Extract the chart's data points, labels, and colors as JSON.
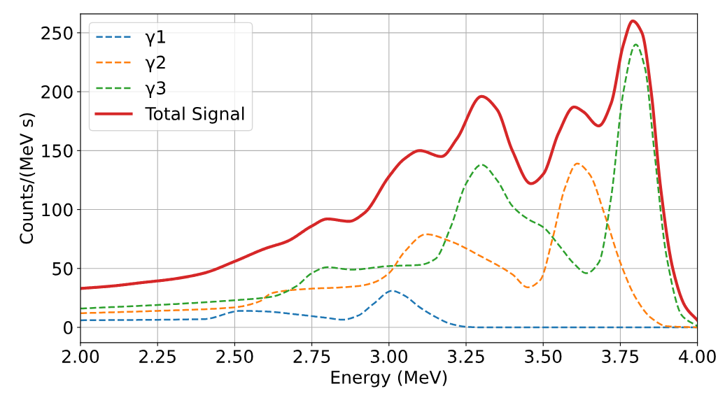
{
  "chart_data": {
    "type": "line",
    "xlabel": "Energy (MeV)",
    "ylabel": "Counts/(MeV s)",
    "xlim": [
      2.0,
      4.0
    ],
    "ylim": [
      -13,
      266
    ],
    "xticks": [
      {
        "value": 2.0,
        "label": "2.00"
      },
      {
        "value": 2.25,
        "label": "2.25"
      },
      {
        "value": 2.5,
        "label": "2.50"
      },
      {
        "value": 2.75,
        "label": "2.75"
      },
      {
        "value": 3.0,
        "label": "3.00"
      },
      {
        "value": 3.25,
        "label": "3.25"
      },
      {
        "value": 3.5,
        "label": "3.50"
      },
      {
        "value": 3.75,
        "label": "3.75"
      },
      {
        "value": 4.0,
        "label": "4.00"
      }
    ],
    "yticks": [
      0,
      50,
      100,
      150,
      200,
      250
    ],
    "grid": true,
    "legend": "top left",
    "series": [
      {
        "name": "γ1",
        "color": "#1f77b4",
        "line_style": "dashed",
        "x": [
          2.0,
          2.4,
          2.52,
          2.6,
          2.7,
          2.8,
          2.85,
          2.9,
          2.95,
          3.01,
          3.05,
          3.1,
          3.15,
          3.2,
          3.25,
          3.3,
          4.0
        ],
        "values": [
          6,
          7,
          14,
          13.5,
          11,
          8,
          6.5,
          10,
          20,
          31,
          27,
          17,
          9,
          3,
          0.5,
          0,
          0
        ]
      },
      {
        "name": "γ2",
        "color": "#ff7f0e",
        "line_style": "dashed",
        "x": [
          2.0,
          2.25,
          2.5,
          2.58,
          2.62,
          2.7,
          2.9,
          2.95,
          3.0,
          3.05,
          3.12,
          3.2,
          3.3,
          3.4,
          3.45,
          3.49,
          3.53,
          3.57,
          3.61,
          3.65,
          3.7,
          3.75,
          3.8,
          3.85,
          3.9,
          4.0
        ],
        "values": [
          12,
          14,
          17,
          22,
          29,
          32,
          35,
          38,
          46,
          64,
          79,
          73,
          60,
          45,
          34,
          40,
          75,
          118,
          139,
          130,
          95,
          55,
          25,
          8,
          1,
          0
        ]
      },
      {
        "name": "γ3",
        "color": "#2ca02c",
        "line_style": "dashed",
        "x": [
          2.0,
          2.25,
          2.5,
          2.62,
          2.7,
          2.75,
          2.8,
          2.88,
          3.0,
          3.1,
          3.15,
          3.2,
          3.25,
          3.3,
          3.35,
          3.4,
          3.45,
          3.5,
          3.55,
          3.6,
          3.64,
          3.68,
          3.72,
          3.76,
          3.8,
          3.83,
          3.86,
          3.9,
          3.95,
          4.0
        ],
        "values": [
          16,
          19,
          23,
          26,
          35,
          46,
          51,
          49,
          52,
          53,
          58,
          85,
          122,
          138,
          125,
          103,
          92,
          85,
          70,
          54,
          46,
          55,
          110,
          200,
          240,
          220,
          150,
          60,
          10,
          1
        ]
      },
      {
        "name": "Total Signal",
        "color": "#d62728",
        "line_style": "solid",
        "x": [
          2.0,
          2.1,
          2.2,
          2.3,
          2.4,
          2.5,
          2.6,
          2.67,
          2.75,
          2.8,
          2.87,
          2.92,
          3.0,
          3.05,
          3.1,
          3.17,
          3.22,
          3.3,
          3.35,
          3.4,
          3.46,
          3.5,
          3.55,
          3.6,
          3.63,
          3.68,
          3.72,
          3.76,
          3.79,
          3.82,
          3.85,
          3.88,
          3.92,
          3.96,
          4.0
        ],
        "values": [
          33,
          35,
          38,
          41,
          46,
          56,
          67,
          73,
          86,
          92,
          90,
          97,
          128,
          143,
          150,
          145,
          160,
          196,
          185,
          150,
          122,
          130,
          165,
          187,
          183,
          171,
          190,
          240,
          260,
          250,
          200,
          120,
          50,
          18,
          6
        ]
      }
    ]
  }
}
